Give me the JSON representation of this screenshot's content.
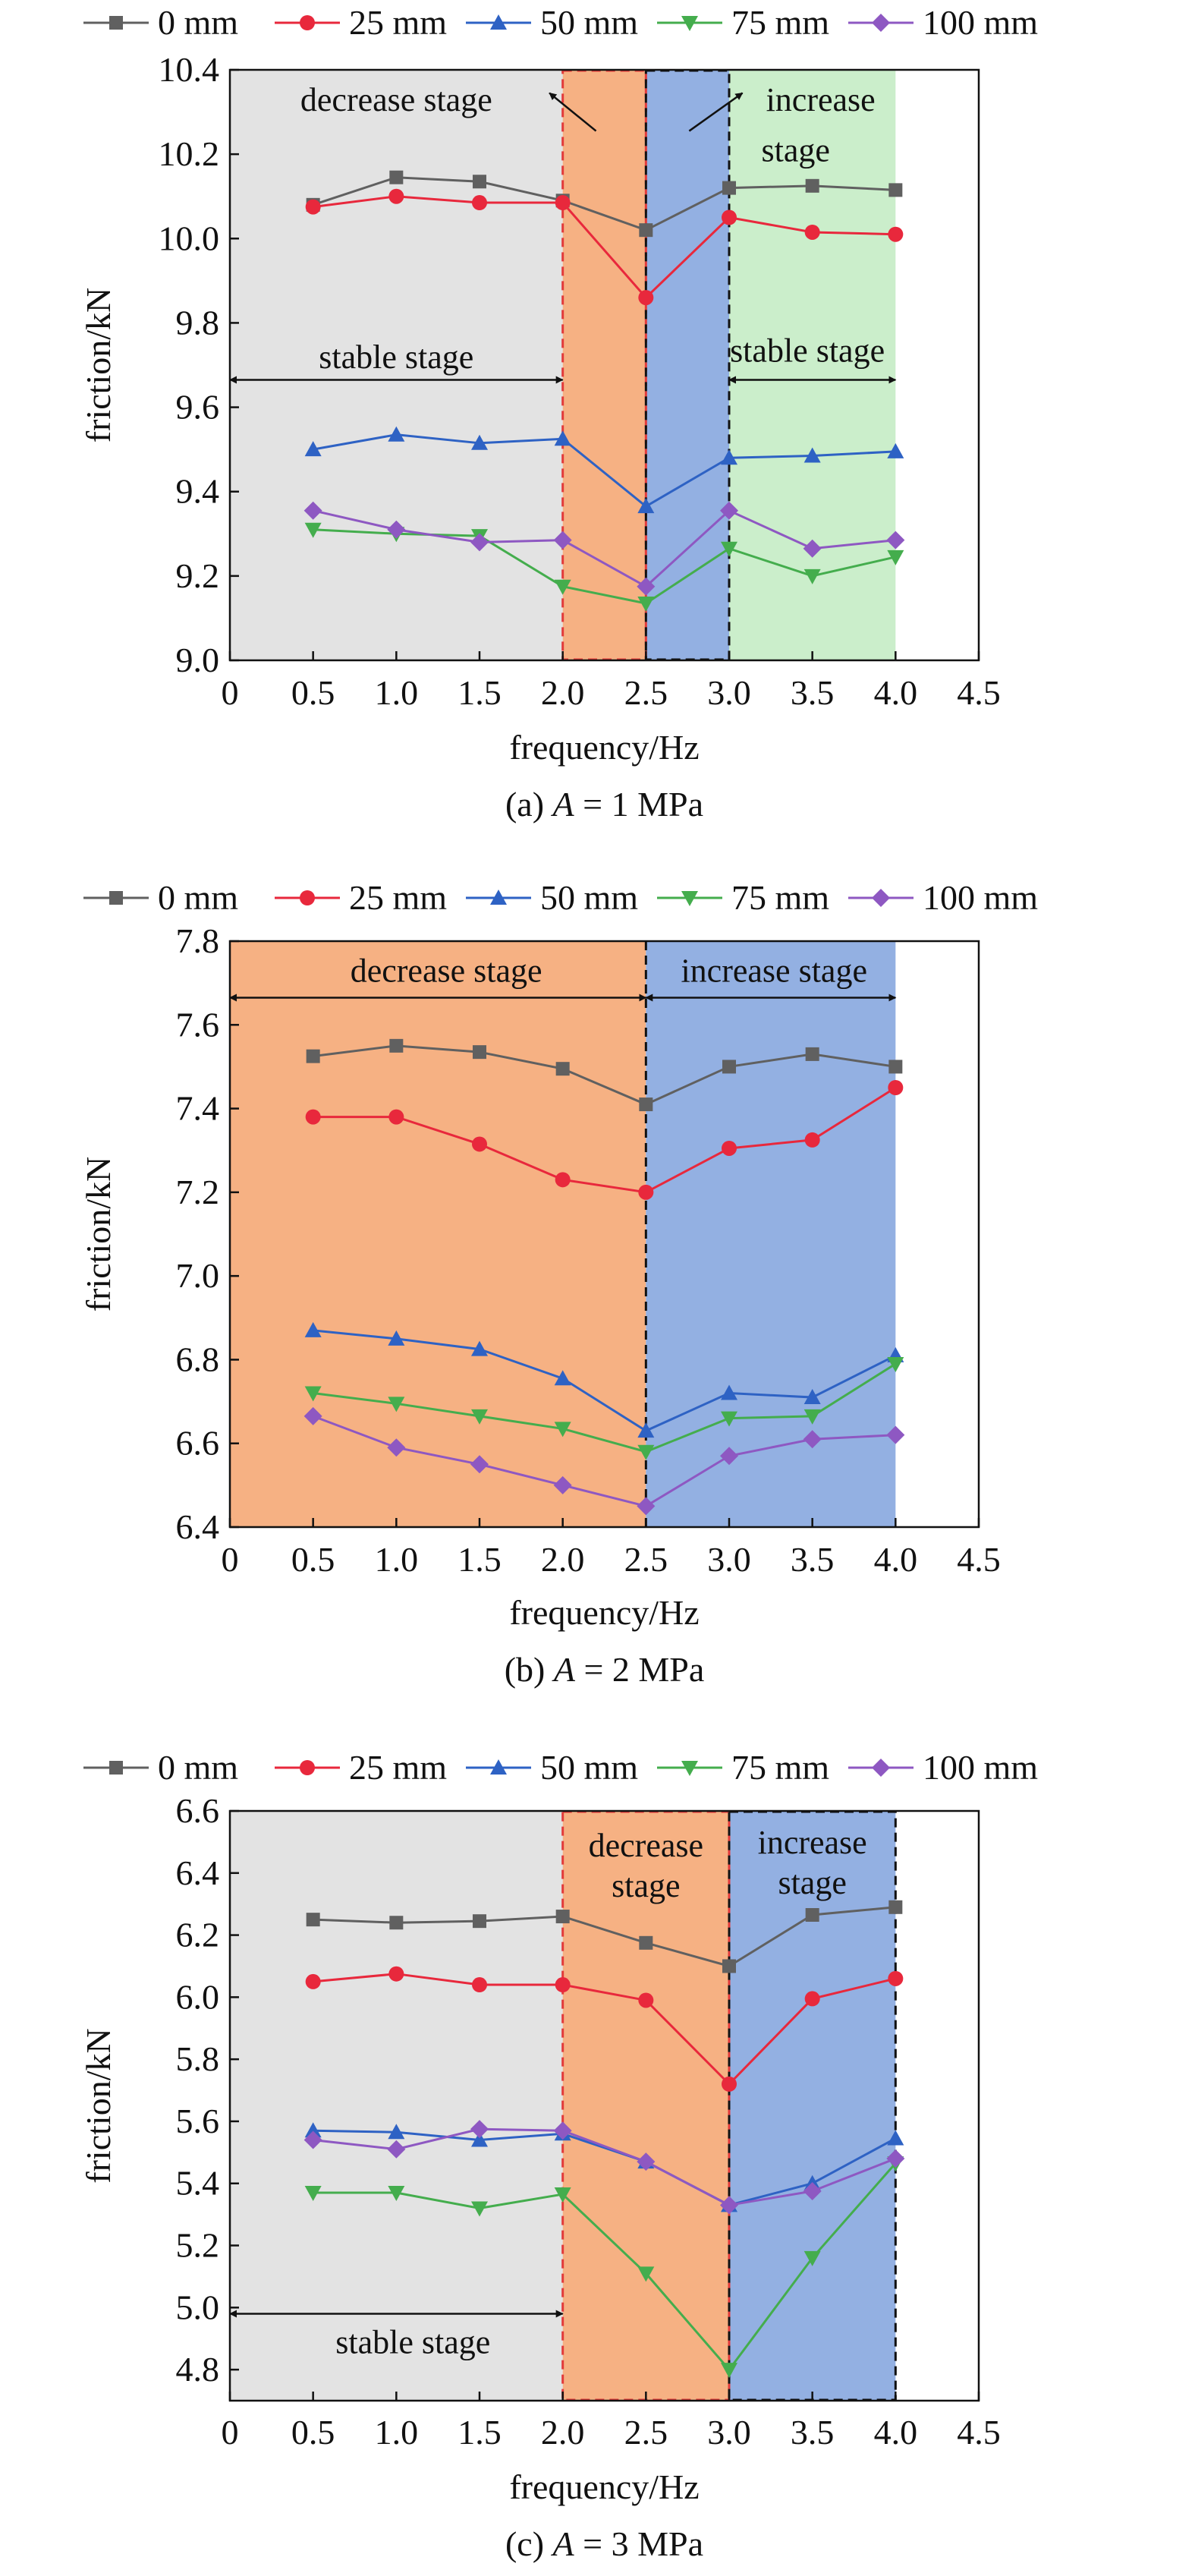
{
  "colors": {
    "background": "#ffffff",
    "axis": "#111111",
    "shade_stable": "#e3e3e3",
    "shade_decrease": "#f6b183",
    "shade_increase": "#93b0e2",
    "shade_increase_stable": "#cbeecb",
    "border_decrease": "#e23a3a",
    "border_increase": "#111111"
  },
  "legend": [
    {
      "label": "0 mm",
      "color": "#606060",
      "marker": "square"
    },
    {
      "label": "25 mm",
      "color": "#e8283c",
      "marker": "circle"
    },
    {
      "label": "50 mm",
      "color": "#2e62c4",
      "marker": "triangle-up"
    },
    {
      "label": "75 mm",
      "color": "#44ad4d",
      "marker": "triangle-down"
    },
    {
      "label": "100 mm",
      "color": "#8e58c2",
      "marker": "diamond"
    }
  ],
  "chart_data": [
    {
      "type": "line",
      "caption_prefix": "(a) ",
      "caption_var": "A",
      "caption_suffix": " = 1 MPa",
      "xlabel": "frequency/Hz",
      "ylabel": "friction/kN",
      "xlim": [
        0,
        4.5
      ],
      "ylim": [
        9.0,
        10.4
      ],
      "xticks": [
        "0",
        "0.5",
        "1.0",
        "1.5",
        "2.0",
        "2.5",
        "3.0",
        "3.5",
        "4.0",
        "4.5"
      ],
      "yticks": [
        "9.0",
        "9.2",
        "9.4",
        "9.6",
        "9.8",
        "10.0",
        "10.2",
        "10.4"
      ],
      "x": [
        0.5,
        1.0,
        1.5,
        2.0,
        2.5,
        3.0,
        3.5,
        4.0
      ],
      "series": [
        {
          "name": "0 mm",
          "values": [
            10.08,
            10.145,
            10.135,
            10.09,
            10.02,
            10.12,
            10.125,
            10.115
          ]
        },
        {
          "name": "25 mm",
          "values": [
            10.075,
            10.1,
            10.085,
            10.085,
            9.86,
            10.05,
            10.015,
            10.01
          ]
        },
        {
          "name": "50 mm",
          "values": [
            9.5,
            9.535,
            9.515,
            9.525,
            9.365,
            9.48,
            9.485,
            9.495
          ]
        },
        {
          "name": "75 mm",
          "values": [
            9.31,
            9.3,
            9.295,
            9.175,
            9.135,
            9.265,
            9.2,
            9.245
          ]
        },
        {
          "name": "100 mm",
          "values": [
            9.355,
            9.31,
            9.28,
            9.285,
            9.175,
            9.355,
            9.265,
            9.285
          ]
        }
      ],
      "regions": [
        {
          "x0": 0,
          "x1": 2.0,
          "shade": "stable"
        },
        {
          "x0": 2.0,
          "x1": 2.5,
          "shade": "decrease",
          "bordered": "decrease"
        },
        {
          "x0": 2.5,
          "x1": 3.0,
          "shade": "increase",
          "bordered": "increase"
        },
        {
          "x0": 3.0,
          "x1": 4.0,
          "shade": "increase_stable"
        }
      ],
      "annotations": [
        {
          "text": "decrease stage",
          "x": 1.0,
          "y": 10.33
        },
        {
          "text": "increase",
          "x": 3.55,
          "y": 10.33
        },
        {
          "text": "stage",
          "x": 3.4,
          "y": 10.21
        },
        {
          "text": "stable stage",
          "x": 1.0,
          "y": 9.72
        },
        {
          "text": "stable stage",
          "x": 3.47,
          "y": 9.735
        }
      ],
      "arrows": [
        {
          "x1": 0,
          "y1": 9.665,
          "x2": 2.0,
          "y2": 9.665,
          "double": true
        },
        {
          "x1": 3.0,
          "y1": 9.665,
          "x2": 4.0,
          "y2": 9.665,
          "double": true
        },
        {
          "x1": 2.2,
          "y1": 10.255,
          "x2": 1.92,
          "y2": 10.345,
          "double": false
        },
        {
          "x1": 2.76,
          "y1": 10.255,
          "x2": 3.08,
          "y2": 10.345,
          "double": false
        }
      ]
    },
    {
      "type": "line",
      "caption_prefix": "(b) ",
      "caption_var": "A",
      "caption_suffix": " = 2 MPa",
      "xlabel": "frequency/Hz",
      "ylabel": "friction/kN",
      "xlim": [
        0,
        4.5
      ],
      "ylim": [
        6.4,
        7.8
      ],
      "xticks": [
        "0",
        "0.5",
        "1.0",
        "1.5",
        "2.0",
        "2.5",
        "3.0",
        "3.5",
        "4.0",
        "4.5"
      ],
      "yticks": [
        "6.4",
        "6.6",
        "6.8",
        "7.0",
        "7.2",
        "7.4",
        "7.6",
        "7.8"
      ],
      "x": [
        0.5,
        1.0,
        1.5,
        2.0,
        2.5,
        3.0,
        3.5,
        4.0
      ],
      "series": [
        {
          "name": "0 mm",
          "values": [
            7.525,
            7.55,
            7.535,
            7.495,
            7.41,
            7.5,
            7.53,
            7.5
          ]
        },
        {
          "name": "25 mm",
          "values": [
            7.38,
            7.38,
            7.315,
            7.23,
            7.2,
            7.305,
            7.325,
            7.45
          ]
        },
        {
          "name": "50 mm",
          "values": [
            6.87,
            6.85,
            6.825,
            6.755,
            6.63,
            6.72,
            6.71,
            6.81
          ]
        },
        {
          "name": "75 mm",
          "values": [
            6.72,
            6.695,
            6.665,
            6.635,
            6.58,
            6.66,
            6.665,
            6.79
          ]
        },
        {
          "name": "100 mm",
          "values": [
            6.665,
            6.59,
            6.55,
            6.5,
            6.45,
            6.57,
            6.61,
            6.62
          ]
        }
      ],
      "regions": [
        {
          "x0": 0,
          "x1": 2.5,
          "shade": "decrease"
        },
        {
          "x0": 2.5,
          "x1": 4.0,
          "shade": "increase",
          "divider": "increase"
        }
      ],
      "annotations": [
        {
          "text": "decrease stage",
          "x": 1.3,
          "y": 7.73
        },
        {
          "text": "increase stage",
          "x": 3.27,
          "y": 7.73
        }
      ],
      "arrows": [
        {
          "x1": 0,
          "y1": 7.665,
          "x2": 2.5,
          "y2": 7.665,
          "double": true
        },
        {
          "x1": 2.5,
          "y1": 7.665,
          "x2": 4.0,
          "y2": 7.665,
          "double": true
        }
      ]
    },
    {
      "type": "line",
      "caption_prefix": "(c) ",
      "caption_var": "A",
      "caption_suffix": " = 3 MPa",
      "xlabel": "frequency/Hz",
      "ylabel": "friction/kN",
      "xlim": [
        0,
        4.5
      ],
      "ylim": [
        4.7,
        6.6
      ],
      "xticks": [
        "0",
        "0.5",
        "1.0",
        "1.5",
        "2.0",
        "2.5",
        "3.0",
        "3.5",
        "4.0",
        "4.5"
      ],
      "yticks": [
        "4.8",
        "5.0",
        "5.2",
        "5.4",
        "5.6",
        "5.8",
        "6.0",
        "6.2",
        "6.4",
        "6.6"
      ],
      "x": [
        0.5,
        1.0,
        1.5,
        2.0,
        2.5,
        3.0,
        3.5,
        4.0
      ],
      "series": [
        {
          "name": "0 mm",
          "values": [
            6.25,
            6.24,
            6.245,
            6.26,
            6.175,
            6.1,
            6.265,
            6.29
          ]
        },
        {
          "name": "25 mm",
          "values": [
            6.05,
            6.075,
            6.04,
            6.04,
            5.99,
            5.72,
            5.995,
            6.06
          ]
        },
        {
          "name": "50 mm",
          "values": [
            5.57,
            5.565,
            5.54,
            5.56,
            5.47,
            5.33,
            5.4,
            5.545
          ]
        },
        {
          "name": "75 mm",
          "values": [
            5.37,
            5.37,
            5.32,
            5.365,
            5.11,
            4.8,
            5.16,
            5.465
          ]
        },
        {
          "name": "100 mm",
          "values": [
            5.54,
            5.51,
            5.575,
            5.57,
            5.47,
            5.33,
            5.375,
            5.48
          ]
        }
      ],
      "regions": [
        {
          "x0": 0,
          "x1": 2.0,
          "shade": "stable"
        },
        {
          "x0": 2.0,
          "x1": 3.0,
          "shade": "decrease",
          "bordered": "decrease"
        },
        {
          "x0": 3.0,
          "x1": 4.0,
          "shade": "increase",
          "bordered": "increase"
        }
      ],
      "annotations": [
        {
          "text": "decrease",
          "x": 2.5,
          "y": 6.49
        },
        {
          "text": "stage",
          "x": 2.5,
          "y": 6.36
        },
        {
          "text": "increase",
          "x": 3.5,
          "y": 6.5
        },
        {
          "text": "stage",
          "x": 3.5,
          "y": 6.37
        },
        {
          "text": "stable stage",
          "x": 1.1,
          "y": 4.89
        }
      ],
      "arrows": [
        {
          "x1": 0,
          "y1": 4.98,
          "x2": 2.0,
          "y2": 4.98,
          "double": true
        }
      ]
    }
  ]
}
